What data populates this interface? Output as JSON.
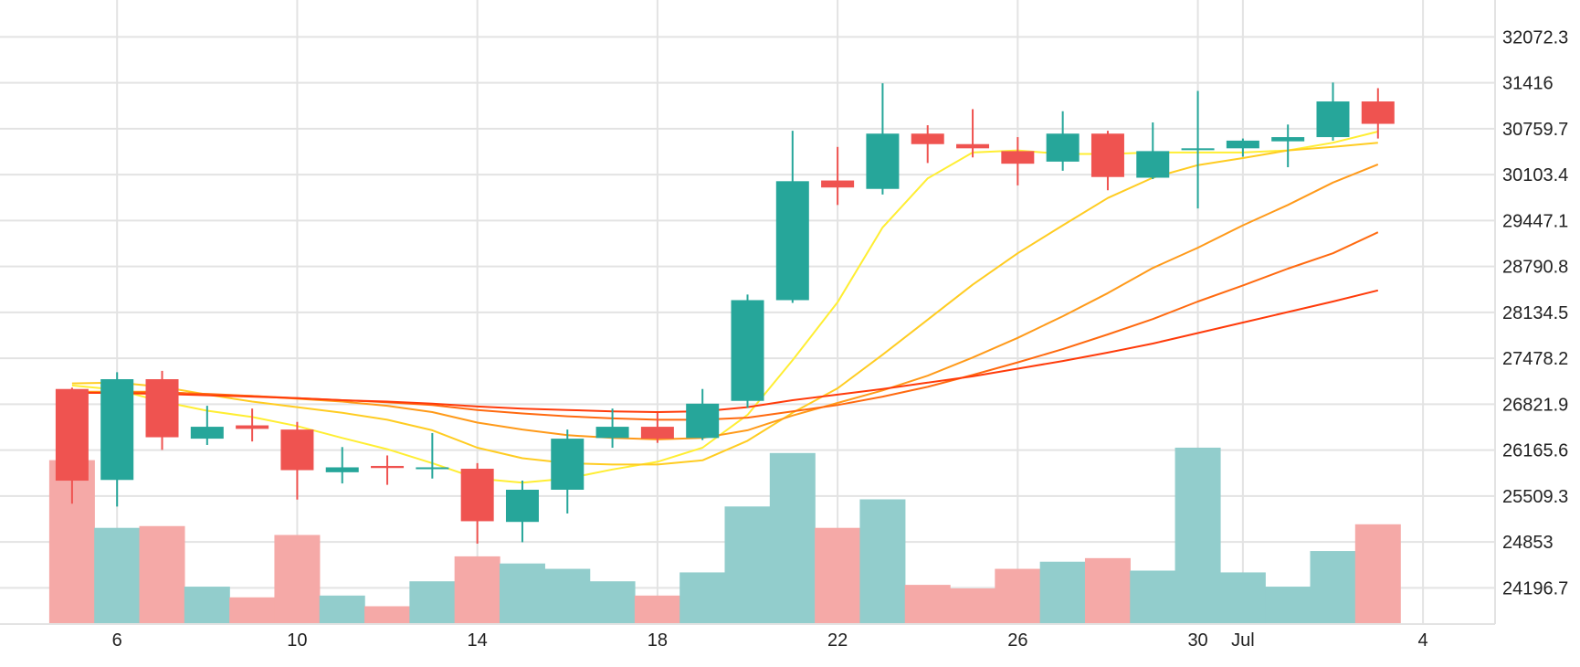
{
  "chart_data": {
    "type": "candlestick",
    "colors": {
      "up": "#26a69a",
      "down": "#ef5350",
      "up_volume": "#92cdcc",
      "down_volume": "#f5a9a7",
      "grid": "#e3e3e3",
      "ma_lines": [
        "#ffee33",
        "#ffcc22",
        "#ff9a1a",
        "#ff6a10",
        "#ff3b0a"
      ]
    },
    "price_axis": {
      "position": "right",
      "ticks": [
        "32072.3",
        "31416",
        "30759.7",
        "30103.4",
        "29447.1",
        "28790.8",
        "28134.5",
        "27478.2",
        "26821.9",
        "26165.6",
        "25509.3",
        "24853",
        "24196.7"
      ],
      "range": [
        23680,
        32600
      ]
    },
    "x_axis": {
      "tick_labels": [
        {
          "label": "6",
          "day": 6
        },
        {
          "label": "10",
          "day": 10
        },
        {
          "label": "14",
          "day": 14
        },
        {
          "label": "18",
          "day": 18
        },
        {
          "label": "22",
          "day": 22
        },
        {
          "label": "26",
          "day": 26
        },
        {
          "label": "30",
          "day": 30
        },
        {
          "label": "Jul",
          "day": 31
        },
        {
          "label": "4",
          "day": 35
        }
      ],
      "range": [
        3.4,
        36.6
      ]
    },
    "candles": [
      {
        "day": 5,
        "open": 27040,
        "high": 27060,
        "low": 25400,
        "close": 25730
      },
      {
        "day": 6,
        "open": 25740,
        "high": 27280,
        "low": 25360,
        "close": 27180
      },
      {
        "day": 7,
        "open": 27180,
        "high": 27300,
        "low": 26170,
        "close": 26350
      },
      {
        "day": 8,
        "open": 26330,
        "high": 26800,
        "low": 26240,
        "close": 26500
      },
      {
        "day": 9,
        "open": 26520,
        "high": 26760,
        "low": 26290,
        "close": 26470
      },
      {
        "day": 10,
        "open": 26460,
        "high": 26570,
        "low": 25460,
        "close": 25880
      },
      {
        "day": 11,
        "open": 25850,
        "high": 26210,
        "low": 25690,
        "close": 25920
      },
      {
        "day": 12,
        "open": 25940,
        "high": 26090,
        "low": 25670,
        "close": 25910
      },
      {
        "day": 13,
        "open": 25900,
        "high": 26410,
        "low": 25760,
        "close": 25920
      },
      {
        "day": 14,
        "open": 25900,
        "high": 25980,
        "low": 24830,
        "close": 25150
      },
      {
        "day": 15,
        "open": 25140,
        "high": 25730,
        "low": 24850,
        "close": 25600
      },
      {
        "day": 16,
        "open": 25600,
        "high": 26460,
        "low": 25260,
        "close": 26330
      },
      {
        "day": 17,
        "open": 26340,
        "high": 26760,
        "low": 26200,
        "close": 26500
      },
      {
        "day": 18,
        "open": 26500,
        "high": 26700,
        "low": 26270,
        "close": 26330
      },
      {
        "day": 19,
        "open": 26340,
        "high": 27040,
        "low": 26310,
        "close": 26830
      },
      {
        "day": 20,
        "open": 26870,
        "high": 28390,
        "low": 26770,
        "close": 28310
      },
      {
        "day": 21,
        "open": 28310,
        "high": 30730,
        "low": 28270,
        "close": 30010
      },
      {
        "day": 22,
        "open": 30020,
        "high": 30500,
        "low": 29670,
        "close": 29920
      },
      {
        "day": 23,
        "open": 29900,
        "high": 31410,
        "low": 29820,
        "close": 30690
      },
      {
        "day": 24,
        "open": 30690,
        "high": 30810,
        "low": 30270,
        "close": 30540
      },
      {
        "day": 25,
        "open": 30540,
        "high": 31040,
        "low": 30350,
        "close": 30480
      },
      {
        "day": 26,
        "open": 30440,
        "high": 30640,
        "low": 29950,
        "close": 30260
      },
      {
        "day": 27,
        "open": 30290,
        "high": 31010,
        "low": 30160,
        "close": 30690
      },
      {
        "day": 28,
        "open": 30690,
        "high": 30730,
        "low": 29880,
        "close": 30070
      },
      {
        "day": 29,
        "open": 30060,
        "high": 30850,
        "low": 30040,
        "close": 30440
      },
      {
        "day": 30,
        "open": 30460,
        "high": 31300,
        "low": 29620,
        "close": 30480
      },
      {
        "day": 31,
        "open": 30480,
        "high": 30620,
        "low": 30360,
        "close": 30590
      },
      {
        "day": 32,
        "open": 30580,
        "high": 30820,
        "low": 30210,
        "close": 30640
      },
      {
        "day": 33,
        "open": 30640,
        "high": 31420,
        "low": 30590,
        "close": 31150
      },
      {
        "day": 34,
        "open": 31150,
        "high": 31340,
        "low": 30620,
        "close": 30830
      }
    ],
    "volumes": [
      0.92,
      0.54,
      0.55,
      0.21,
      0.15,
      0.5,
      0.16,
      0.1,
      0.24,
      0.38,
      0.34,
      0.31,
      0.24,
      0.16,
      0.29,
      0.66,
      0.96,
      0.54,
      0.7,
      0.22,
      0.2,
      0.31,
      0.35,
      0.37,
      0.3,
      0.99,
      0.29,
      0.21,
      0.41,
      0.56
    ],
    "moving_averages": [
      {
        "color": "#ffee33",
        "points": [
          [
            5,
            27090
          ],
          [
            6,
            27030
          ],
          [
            7,
            26860
          ],
          [
            8,
            26730
          ],
          [
            9,
            26640
          ],
          [
            10,
            26510
          ],
          [
            11,
            26340
          ],
          [
            12,
            26180
          ],
          [
            13,
            25980
          ],
          [
            14,
            25760
          ],
          [
            15,
            25700
          ],
          [
            16,
            25760
          ],
          [
            17,
            25890
          ],
          [
            18,
            26000
          ],
          [
            19,
            26200
          ],
          [
            20,
            26670
          ],
          [
            21,
            27450
          ],
          [
            22,
            28280
          ],
          [
            23,
            29350
          ],
          [
            24,
            30050
          ],
          [
            25,
            30420
          ],
          [
            26,
            30450
          ],
          [
            27,
            30400
          ],
          [
            28,
            30400
          ],
          [
            29,
            30420
          ],
          [
            30,
            30420
          ],
          [
            31,
            30420
          ],
          [
            32,
            30450
          ],
          [
            33,
            30560
          ],
          [
            34,
            30720
          ]
        ]
      },
      {
        "color": "#ffcc22",
        "points": [
          [
            5,
            27120
          ],
          [
            6,
            27130
          ],
          [
            7,
            27070
          ],
          [
            8,
            26960
          ],
          [
            9,
            26860
          ],
          [
            10,
            26780
          ],
          [
            11,
            26700
          ],
          [
            12,
            26600
          ],
          [
            13,
            26450
          ],
          [
            14,
            26200
          ],
          [
            15,
            26050
          ],
          [
            16,
            25980
          ],
          [
            17,
            25960
          ],
          [
            18,
            25960
          ],
          [
            19,
            26020
          ],
          [
            20,
            26300
          ],
          [
            21,
            26700
          ],
          [
            22,
            27050
          ],
          [
            23,
            27530
          ],
          [
            24,
            28030
          ],
          [
            25,
            28530
          ],
          [
            26,
            28980
          ],
          [
            27,
            29380
          ],
          [
            28,
            29770
          ],
          [
            29,
            30060
          ],
          [
            30,
            30240
          ],
          [
            31,
            30340
          ],
          [
            32,
            30450
          ],
          [
            33,
            30500
          ],
          [
            34,
            30560
          ]
        ]
      },
      {
        "color": "#ff9a1a",
        "points": [
          [
            5,
            27000
          ],
          [
            6,
            27000
          ],
          [
            7,
            27000
          ],
          [
            8,
            26960
          ],
          [
            9,
            26940
          ],
          [
            10,
            26900
          ],
          [
            11,
            26860
          ],
          [
            12,
            26800
          ],
          [
            13,
            26710
          ],
          [
            14,
            26560
          ],
          [
            15,
            26460
          ],
          [
            16,
            26380
          ],
          [
            17,
            26340
          ],
          [
            18,
            26320
          ],
          [
            19,
            26340
          ],
          [
            20,
            26450
          ],
          [
            21,
            26660
          ],
          [
            22,
            26840
          ],
          [
            23,
            27020
          ],
          [
            24,
            27230
          ],
          [
            25,
            27490
          ],
          [
            26,
            27770
          ],
          [
            27,
            28080
          ],
          [
            28,
            28410
          ],
          [
            29,
            28770
          ],
          [
            30,
            29060
          ],
          [
            31,
            29380
          ],
          [
            32,
            29670
          ],
          [
            33,
            29990
          ],
          [
            34,
            30250
          ]
        ]
      },
      {
        "color": "#ff6a10",
        "points": [
          [
            5,
            26980
          ],
          [
            6,
            26990
          ],
          [
            7,
            26990
          ],
          [
            8,
            26970
          ],
          [
            9,
            26940
          ],
          [
            10,
            26910
          ],
          [
            11,
            26880
          ],
          [
            12,
            26850
          ],
          [
            13,
            26810
          ],
          [
            14,
            26740
          ],
          [
            15,
            26690
          ],
          [
            16,
            26650
          ],
          [
            17,
            26620
          ],
          [
            18,
            26600
          ],
          [
            19,
            26600
          ],
          [
            20,
            26630
          ],
          [
            21,
            26720
          ],
          [
            22,
            26810
          ],
          [
            23,
            26930
          ],
          [
            24,
            27070
          ],
          [
            25,
            27240
          ],
          [
            26,
            27420
          ],
          [
            27,
            27610
          ],
          [
            28,
            27820
          ],
          [
            29,
            28040
          ],
          [
            30,
            28290
          ],
          [
            31,
            28520
          ],
          [
            32,
            28760
          ],
          [
            33,
            28980
          ],
          [
            34,
            29280
          ]
        ]
      },
      {
        "color": "#ff3b0a",
        "points": [
          [
            5,
            26990
          ],
          [
            6,
            26980
          ],
          [
            7,
            26970
          ],
          [
            8,
            26950
          ],
          [
            9,
            26930
          ],
          [
            10,
            26910
          ],
          [
            11,
            26880
          ],
          [
            12,
            26860
          ],
          [
            13,
            26830
          ],
          [
            14,
            26790
          ],
          [
            15,
            26760
          ],
          [
            16,
            26740
          ],
          [
            17,
            26720
          ],
          [
            18,
            26710
          ],
          [
            19,
            26720
          ],
          [
            20,
            26780
          ],
          [
            21,
            26880
          ],
          [
            22,
            26960
          ],
          [
            23,
            27040
          ],
          [
            24,
            27130
          ],
          [
            25,
            27220
          ],
          [
            26,
            27330
          ],
          [
            27,
            27440
          ],
          [
            28,
            27560
          ],
          [
            29,
            27690
          ],
          [
            30,
            27840
          ],
          [
            31,
            27990
          ],
          [
            32,
            28140
          ],
          [
            33,
            28290
          ],
          [
            34,
            28450
          ]
        ]
      }
    ]
  }
}
